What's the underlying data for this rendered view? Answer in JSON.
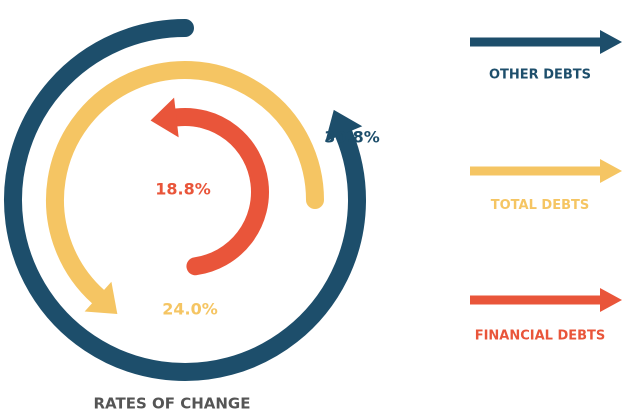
{
  "chart_data": {
    "type": "radial_arrows",
    "title": "RATES OF CHANGE",
    "categories": [
      "OTHER DEBTS",
      "TOTAL DEBTS",
      "FINANCIAL DEBTS"
    ],
    "values": [
      30.8,
      24.0,
      18.8
    ],
    "value_labels": [
      "30.8%",
      "24.0%",
      "18.8%"
    ],
    "colors": [
      "#1d4e6b",
      "#f5c563",
      "#e9553a"
    ]
  }
}
